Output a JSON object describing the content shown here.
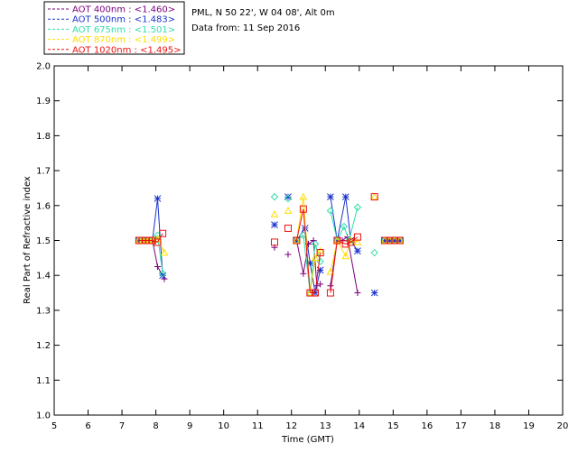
{
  "chart_data": {
    "type": "line",
    "xlabel": "Time (GMT)",
    "ylabel": "Real Part of Refractive index",
    "xlim": [
      5,
      20
    ],
    "ylim": [
      1.0,
      2.0
    ],
    "xticks": [
      5,
      6,
      7,
      8,
      9,
      10,
      11,
      12,
      13,
      14,
      15,
      16,
      17,
      18,
      19,
      20
    ],
    "yticks": [
      1.0,
      1.1,
      1.2,
      1.3,
      1.4,
      1.5,
      1.6,
      1.7,
      1.8,
      1.9,
      2.0
    ],
    "grid": false,
    "legend_position": "top-left",
    "info_lines": [
      "PML, N 50 22', W 04 08', Alt 0m",
      "Data from: 11 Sep 2016"
    ],
    "series": [
      {
        "name": "AOT  400nm : <1.460>",
        "color": "#7a007a",
        "marker": "plus",
        "x": [
          7.5,
          7.6,
          7.7,
          7.8,
          7.9,
          8.05,
          8.25,
          11.5,
          11.9,
          12.15,
          12.35,
          12.5,
          12.65,
          12.75,
          12.85,
          13.15,
          13.35,
          13.5,
          13.65,
          13.95,
          14.75,
          14.9,
          15.05,
          15.2
        ],
        "y": [
          1.5,
          1.5,
          1.5,
          1.5,
          1.5,
          1.425,
          1.39,
          1.48,
          1.46,
          1.5,
          1.405,
          1.49,
          1.5,
          1.37,
          1.375,
          1.37,
          1.5,
          1.5,
          1.51,
          1.35,
          1.5,
          1.5,
          1.5,
          1.5
        ],
        "line_segments": [
          [
            0,
            6
          ],
          [
            9,
            13
          ],
          [
            15,
            19
          ]
        ]
      },
      {
        "name": "AOT  500nm : <1.483>",
        "color": "#1a33cc",
        "marker": "star",
        "x": [
          7.5,
          7.6,
          7.7,
          7.8,
          7.9,
          8.05,
          8.2,
          11.5,
          11.9,
          12.15,
          12.4,
          12.55,
          12.7,
          12.85,
          13.15,
          13.35,
          13.6,
          13.75,
          13.95,
          14.45,
          14.75,
          14.9,
          15.05,
          15.2
        ],
        "y": [
          1.5,
          1.5,
          1.5,
          1.5,
          1.5,
          1.62,
          1.4,
          1.545,
          1.625,
          1.5,
          1.535,
          1.435,
          1.35,
          1.415,
          1.625,
          1.5,
          1.625,
          1.5,
          1.47,
          1.35,
          1.5,
          1.5,
          1.5,
          1.5
        ],
        "line_segments": [
          [
            0,
            6
          ],
          [
            9,
            13
          ],
          [
            14,
            18
          ]
        ]
      },
      {
        "name": "AOT  675nm : <1.501>",
        "color": "#33ddaa",
        "marker": "diamond",
        "x": [
          7.5,
          7.6,
          7.7,
          7.8,
          7.9,
          8.05,
          8.2,
          11.5,
          11.9,
          12.15,
          12.35,
          12.55,
          12.7,
          12.85,
          13.15,
          13.35,
          13.55,
          13.7,
          13.95,
          14.45,
          14.75,
          14.9,
          15.05,
          15.2
        ],
        "y": [
          1.5,
          1.5,
          1.5,
          1.5,
          1.5,
          1.515,
          1.405,
          1.625,
          1.62,
          1.5,
          1.515,
          1.35,
          1.49,
          1.44,
          1.585,
          1.5,
          1.54,
          1.5,
          1.595,
          1.465,
          1.5,
          1.5,
          1.5,
          1.5
        ],
        "line_segments": [
          [
            0,
            6
          ],
          [
            9,
            13
          ],
          [
            14,
            18
          ]
        ]
      },
      {
        "name": "AOT  870nm : <1.499>",
        "color": "#ffdd00",
        "marker": "triangle",
        "x": [
          7.5,
          7.6,
          7.7,
          7.8,
          7.9,
          8.05,
          8.25,
          11.5,
          11.9,
          12.15,
          12.35,
          12.55,
          12.7,
          12.85,
          13.15,
          13.35,
          13.6,
          13.75,
          13.95,
          14.45,
          14.75,
          14.9,
          15.05,
          15.2
        ],
        "y": [
          1.5,
          1.5,
          1.5,
          1.5,
          1.5,
          1.505,
          1.465,
          1.575,
          1.585,
          1.5,
          1.625,
          1.35,
          1.45,
          1.47,
          1.41,
          1.5,
          1.455,
          1.5,
          1.495,
          1.625,
          1.5,
          1.5,
          1.5,
          1.5
        ],
        "line_segments": [
          [
            0,
            6
          ],
          [
            9,
            13
          ],
          [
            14,
            18
          ]
        ]
      },
      {
        "name": "AOT 1020nm : <1.495>",
        "color": "#ee1111",
        "marker": "square",
        "x": [
          7.5,
          7.6,
          7.7,
          7.8,
          7.9,
          8.05,
          8.2,
          11.5,
          11.9,
          12.15,
          12.35,
          12.55,
          12.7,
          12.85,
          13.15,
          13.35,
          13.6,
          13.75,
          13.95,
          14.45,
          14.75,
          14.9,
          15.05,
          15.2
        ],
        "y": [
          1.5,
          1.5,
          1.5,
          1.5,
          1.5,
          1.495,
          1.52,
          1.495,
          1.535,
          1.5,
          1.59,
          1.35,
          1.35,
          1.465,
          1.35,
          1.5,
          1.49,
          1.495,
          1.51,
          1.625,
          1.5,
          1.5,
          1.5,
          1.5
        ],
        "line_segments": [
          [
            0,
            6
          ],
          [
            9,
            13
          ],
          [
            14,
            18
          ]
        ]
      }
    ]
  }
}
